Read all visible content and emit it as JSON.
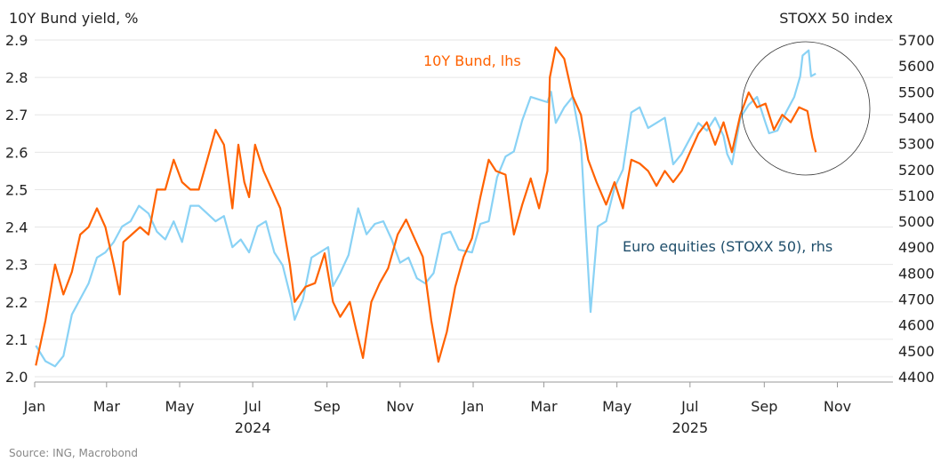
{
  "chart_data": {
    "type": "line",
    "left_axis_title": "10Y Bund yield, %",
    "right_axis_title": "STOXX 50 index",
    "source": "Source: ING, Macrobond",
    "ylim_left": [
      2.0,
      2.9
    ],
    "yticks_left": [
      "2.0",
      "2.1",
      "2.2",
      "2.3",
      "2.4",
      "2.5",
      "2.6",
      "2.7",
      "2.8",
      "2.9"
    ],
    "ylim_right": [
      4400,
      5700
    ],
    "yticks_right": [
      "4400",
      "4500",
      "4600",
      "4700",
      "4800",
      "4900",
      "5000",
      "5100",
      "5200",
      "5300",
      "5400",
      "5500",
      "5600",
      "5700"
    ],
    "xlim": [
      "2024-01-01",
      "2025-12-31"
    ],
    "xticks": [
      {
        "date": "2024-01-01",
        "label": "Jan"
      },
      {
        "date": "2024-03-01",
        "label": "Mar"
      },
      {
        "date": "2024-05-01",
        "label": "May"
      },
      {
        "date": "2024-07-01",
        "label": "Jul"
      },
      {
        "date": "2024-09-01",
        "label": "Sep"
      },
      {
        "date": "2024-11-01",
        "label": "Nov"
      },
      {
        "date": "2025-01-01",
        "label": "Jan"
      },
      {
        "date": "2025-03-01",
        "label": "Mar"
      },
      {
        "date": "2025-05-01",
        "label": "May"
      },
      {
        "date": "2025-07-01",
        "label": "Jul"
      },
      {
        "date": "2025-09-01",
        "label": "Sep"
      },
      {
        "date": "2025-11-01",
        "label": "Nov"
      }
    ],
    "year_labels": [
      {
        "date": "2024-07-01",
        "label": "2024"
      },
      {
        "date": "2025-07-01",
        "label": "2025"
      }
    ],
    "grid": "horizontal",
    "annotation": "circle around Aug–Oct 2025",
    "series": [
      {
        "name": "10Y Bund, lhs",
        "axis": "left",
        "color": "#ff6200",
        "points": [
          [
            "2024-01-02",
            2.03
          ],
          [
            "2024-01-10",
            2.15
          ],
          [
            "2024-01-18",
            2.3
          ],
          [
            "2024-01-25",
            2.22
          ],
          [
            "2024-02-01",
            2.28
          ],
          [
            "2024-02-08",
            2.38
          ],
          [
            "2024-02-15",
            2.4
          ],
          [
            "2024-02-22",
            2.45
          ],
          [
            "2024-02-29",
            2.4
          ],
          [
            "2024-03-07",
            2.3
          ],
          [
            "2024-03-12",
            2.22
          ],
          [
            "2024-03-15",
            2.36
          ],
          [
            "2024-03-22",
            2.38
          ],
          [
            "2024-03-29",
            2.4
          ],
          [
            "2024-04-05",
            2.38
          ],
          [
            "2024-04-12",
            2.5
          ],
          [
            "2024-04-19",
            2.5
          ],
          [
            "2024-04-26",
            2.58
          ],
          [
            "2024-05-03",
            2.52
          ],
          [
            "2024-05-10",
            2.5
          ],
          [
            "2024-05-17",
            2.5
          ],
          [
            "2024-05-24",
            2.58
          ],
          [
            "2024-05-31",
            2.66
          ],
          [
            "2024-06-07",
            2.62
          ],
          [
            "2024-06-14",
            2.45
          ],
          [
            "2024-06-19",
            2.62
          ],
          [
            "2024-06-24",
            2.52
          ],
          [
            "2024-06-28",
            2.48
          ],
          [
            "2024-07-03",
            2.62
          ],
          [
            "2024-07-10",
            2.55
          ],
          [
            "2024-07-17",
            2.5
          ],
          [
            "2024-07-24",
            2.45
          ],
          [
            "2024-08-01",
            2.3
          ],
          [
            "2024-08-05",
            2.2
          ],
          [
            "2024-08-14",
            2.24
          ],
          [
            "2024-08-22",
            2.25
          ],
          [
            "2024-08-30",
            2.33
          ],
          [
            "2024-09-06",
            2.2
          ],
          [
            "2024-09-12",
            2.16
          ],
          [
            "2024-09-20",
            2.2
          ],
          [
            "2024-09-25",
            2.13
          ],
          [
            "2024-10-01",
            2.05
          ],
          [
            "2024-10-08",
            2.2
          ],
          [
            "2024-10-15",
            2.25
          ],
          [
            "2024-10-22",
            2.29
          ],
          [
            "2024-10-30",
            2.38
          ],
          [
            "2024-11-06",
            2.42
          ],
          [
            "2024-11-13",
            2.37
          ],
          [
            "2024-11-20",
            2.32
          ],
          [
            "2024-11-27",
            2.15
          ],
          [
            "2024-12-03",
            2.04
          ],
          [
            "2024-12-10",
            2.12
          ],
          [
            "2024-12-17",
            2.24
          ],
          [
            "2024-12-24",
            2.32
          ],
          [
            "2024-12-31",
            2.37
          ],
          [
            "2025-01-07",
            2.48
          ],
          [
            "2025-01-14",
            2.58
          ],
          [
            "2025-01-20",
            2.55
          ],
          [
            "2025-01-28",
            2.54
          ],
          [
            "2025-02-04",
            2.38
          ],
          [
            "2025-02-11",
            2.46
          ],
          [
            "2025-02-18",
            2.53
          ],
          [
            "2025-02-25",
            2.45
          ],
          [
            "2025-03-04",
            2.55
          ],
          [
            "2025-03-06",
            2.8
          ],
          [
            "2025-03-11",
            2.88
          ],
          [
            "2025-03-18",
            2.85
          ],
          [
            "2025-03-25",
            2.75
          ],
          [
            "2025-04-01",
            2.7
          ],
          [
            "2025-04-07",
            2.58
          ],
          [
            "2025-04-14",
            2.52
          ],
          [
            "2025-04-22",
            2.46
          ],
          [
            "2025-04-29",
            2.52
          ],
          [
            "2025-05-06",
            2.45
          ],
          [
            "2025-05-13",
            2.58
          ],
          [
            "2025-05-20",
            2.57
          ],
          [
            "2025-05-27",
            2.55
          ],
          [
            "2025-06-03",
            2.51
          ],
          [
            "2025-06-10",
            2.55
          ],
          [
            "2025-06-17",
            2.52
          ],
          [
            "2025-06-24",
            2.55
          ],
          [
            "2025-07-01",
            2.6
          ],
          [
            "2025-07-08",
            2.65
          ],
          [
            "2025-07-15",
            2.68
          ],
          [
            "2025-07-22",
            2.62
          ],
          [
            "2025-07-29",
            2.68
          ],
          [
            "2025-08-05",
            2.6
          ],
          [
            "2025-08-12",
            2.7
          ],
          [
            "2025-08-19",
            2.76
          ],
          [
            "2025-08-26",
            2.72
          ],
          [
            "2025-09-02",
            2.73
          ],
          [
            "2025-09-09",
            2.66
          ],
          [
            "2025-09-16",
            2.7
          ],
          [
            "2025-09-23",
            2.68
          ],
          [
            "2025-09-30",
            2.72
          ],
          [
            "2025-10-07",
            2.71
          ],
          [
            "2025-10-11",
            2.64
          ],
          [
            "2025-10-14",
            2.6
          ]
        ]
      },
      {
        "name": "Euro equities (STOXX 50), rhs",
        "axis": "right",
        "color": "#89d2f5",
        "points": [
          [
            "2024-01-02",
            4520
          ],
          [
            "2024-01-10",
            4460
          ],
          [
            "2024-01-18",
            4440
          ],
          [
            "2024-01-25",
            4480
          ],
          [
            "2024-02-01",
            4640
          ],
          [
            "2024-02-08",
            4700
          ],
          [
            "2024-02-15",
            4760
          ],
          [
            "2024-02-22",
            4860
          ],
          [
            "2024-02-29",
            4880
          ],
          [
            "2024-03-07",
            4920
          ],
          [
            "2024-03-14",
            4980
          ],
          [
            "2024-03-21",
            5000
          ],
          [
            "2024-03-28",
            5060
          ],
          [
            "2024-04-05",
            5030
          ],
          [
            "2024-04-12",
            4960
          ],
          [
            "2024-04-19",
            4930
          ],
          [
            "2024-04-26",
            5000
          ],
          [
            "2024-05-03",
            4920
          ],
          [
            "2024-05-10",
            5060
          ],
          [
            "2024-05-17",
            5060
          ],
          [
            "2024-05-24",
            5030
          ],
          [
            "2024-05-31",
            5000
          ],
          [
            "2024-06-07",
            5020
          ],
          [
            "2024-06-14",
            4900
          ],
          [
            "2024-06-21",
            4930
          ],
          [
            "2024-06-28",
            4880
          ],
          [
            "2024-07-05",
            4980
          ],
          [
            "2024-07-12",
            5000
          ],
          [
            "2024-07-19",
            4880
          ],
          [
            "2024-07-26",
            4830
          ],
          [
            "2024-08-02",
            4700
          ],
          [
            "2024-08-05",
            4620
          ],
          [
            "2024-08-12",
            4700
          ],
          [
            "2024-08-19",
            4860
          ],
          [
            "2024-08-26",
            4880
          ],
          [
            "2024-09-02",
            4900
          ],
          [
            "2024-09-06",
            4750
          ],
          [
            "2024-09-12",
            4800
          ],
          [
            "2024-09-19",
            4870
          ],
          [
            "2024-09-27",
            5050
          ],
          [
            "2024-10-04",
            4950
          ],
          [
            "2024-10-11",
            4990
          ],
          [
            "2024-10-18",
            5000
          ],
          [
            "2024-10-25",
            4930
          ],
          [
            "2024-11-01",
            4840
          ],
          [
            "2024-11-08",
            4860
          ],
          [
            "2024-11-15",
            4780
          ],
          [
            "2024-11-22",
            4760
          ],
          [
            "2024-11-29",
            4800
          ],
          [
            "2024-12-06",
            4950
          ],
          [
            "2024-12-13",
            4960
          ],
          [
            "2024-12-20",
            4890
          ],
          [
            "2024-12-31",
            4880
          ],
          [
            "2025-01-07",
            4990
          ],
          [
            "2025-01-14",
            5000
          ],
          [
            "2025-01-21",
            5170
          ],
          [
            "2025-01-28",
            5250
          ],
          [
            "2025-02-04",
            5270
          ],
          [
            "2025-02-11",
            5390
          ],
          [
            "2025-02-18",
            5480
          ],
          [
            "2025-02-25",
            5470
          ],
          [
            "2025-03-04",
            5460
          ],
          [
            "2025-03-07",
            5500
          ],
          [
            "2025-03-11",
            5380
          ],
          [
            "2025-03-18",
            5440
          ],
          [
            "2025-03-25",
            5480
          ],
          [
            "2025-04-01",
            5300
          ],
          [
            "2025-04-04",
            5050
          ],
          [
            "2025-04-09",
            4650
          ],
          [
            "2025-04-15",
            4980
          ],
          [
            "2025-04-22",
            5000
          ],
          [
            "2025-04-29",
            5130
          ],
          [
            "2025-05-06",
            5200
          ],
          [
            "2025-05-13",
            5420
          ],
          [
            "2025-05-20",
            5440
          ],
          [
            "2025-05-27",
            5360
          ],
          [
            "2025-06-03",
            5380
          ],
          [
            "2025-06-10",
            5400
          ],
          [
            "2025-06-17",
            5220
          ],
          [
            "2025-06-24",
            5260
          ],
          [
            "2025-07-01",
            5320
          ],
          [
            "2025-07-08",
            5380
          ],
          [
            "2025-07-15",
            5350
          ],
          [
            "2025-07-22",
            5400
          ],
          [
            "2025-07-29",
            5330
          ],
          [
            "2025-08-01",
            5260
          ],
          [
            "2025-08-05",
            5220
          ],
          [
            "2025-08-12",
            5400
          ],
          [
            "2025-08-19",
            5450
          ],
          [
            "2025-08-26",
            5480
          ],
          [
            "2025-09-02",
            5380
          ],
          [
            "2025-09-05",
            5340
          ],
          [
            "2025-09-12",
            5350
          ],
          [
            "2025-09-19",
            5420
          ],
          [
            "2025-09-26",
            5480
          ],
          [
            "2025-10-01",
            5560
          ],
          [
            "2025-10-03",
            5640
          ],
          [
            "2025-10-08",
            5660
          ],
          [
            "2025-10-10",
            5560
          ],
          [
            "2025-10-14",
            5570
          ]
        ]
      }
    ],
    "series_labels": [
      {
        "series": 0,
        "text": "10Y Bund, lhs",
        "color": "#ff6200"
      },
      {
        "series": 1,
        "text": "Euro equities (STOXX 50), rhs",
        "color": "#1f4e6b"
      }
    ]
  }
}
